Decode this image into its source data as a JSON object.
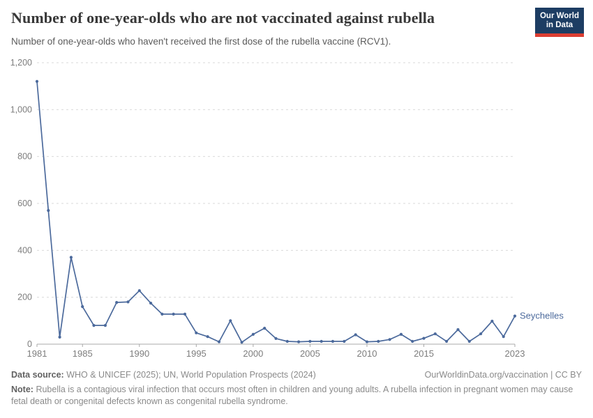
{
  "header": {
    "title": "Number of one-year-olds who are not vaccinated against rubella",
    "subtitle": "Number of one-year-olds who haven't received the first dose of the rubella vaccine (RCV1).",
    "logo": {
      "line1": "Our World",
      "line2": "in Data"
    }
  },
  "colors": {
    "series_blue": "#4C6A9C",
    "grid": "#d9d9d9",
    "axis": "#a8a8a8",
    "tick_label": "#7d7d7d",
    "logo_bg": "#1d3d63",
    "logo_accent": "#dc3e32"
  },
  "chart_data": {
    "type": "line",
    "title": "Number of one-year-olds who are not vaccinated against rubella",
    "xlabel": "",
    "ylabel": "",
    "xlim": [
      1981,
      2023
    ],
    "ylim": [
      0,
      1200
    ],
    "x_ticks": [
      1981,
      1985,
      1990,
      1995,
      2000,
      2005,
      2010,
      2015,
      2023
    ],
    "y_ticks": [
      0,
      200,
      400,
      600,
      800,
      1000,
      1200
    ],
    "grid": "horizontal-dashed",
    "legend_position": "end-of-line-label",
    "x": [
      1981,
      1982,
      1983,
      1984,
      1985,
      1986,
      1987,
      1988,
      1989,
      1990,
      1991,
      1992,
      1993,
      1994,
      1995,
      1996,
      1997,
      1998,
      1999,
      2000,
      2001,
      2002,
      2003,
      2004,
      2005,
      2006,
      2007,
      2008,
      2009,
      2010,
      2011,
      2012,
      2013,
      2014,
      2015,
      2016,
      2017,
      2018,
      2019,
      2020,
      2021,
      2022,
      2023
    ],
    "series": [
      {
        "name": "Seychelles",
        "color": "#4C6A9C",
        "values": [
          1120,
          570,
          30,
          370,
          160,
          80,
          80,
          178,
          180,
          228,
          175,
          128,
          128,
          128,
          48,
          32,
          10,
          100,
          8,
          42,
          68,
          24,
          12,
          10,
          12,
          12,
          12,
          12,
          40,
          10,
          12,
          20,
          42,
          12,
          25,
          44,
          12,
          62,
          12,
          44,
          98,
          32,
          120
        ]
      }
    ]
  },
  "footer": {
    "datasource_label": "Data source:",
    "datasource_text": "WHO & UNICEF (2025); UN, World Population Prospects (2024)",
    "rights": "OurWorldinData.org/vaccination | CC BY",
    "note_label": "Note:",
    "note_text": "Rubella is a contagious viral infection that occurs most often in children and young adults. A rubella infection in pregnant women may cause fetal death or congenital defects known as congenital rubella syndrome."
  }
}
